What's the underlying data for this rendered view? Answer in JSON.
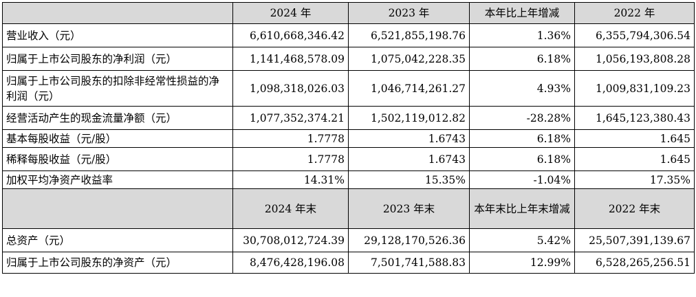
{
  "table": {
    "header1": [
      "",
      "2024 年",
      "2023 年",
      "本年比上年增减",
      "2022 年"
    ],
    "rows1": [
      [
        "营业收入（元）",
        "6,610,668,346.42",
        "6,521,855,198.76",
        "1.36%",
        "6,355,794,306.54"
      ],
      [
        "归属于上市公司股东的净利润（元）",
        "1,141,468,578.09",
        "1,075,042,228.35",
        "6.18%",
        "1,056,193,808.28"
      ],
      [
        "归属于上市公司股东的扣除非经常性损益的净利润（元）",
        "1,098,318,026.03",
        "1,046,714,261.27",
        "4.93%",
        "1,009,831,109.23"
      ],
      [
        "经营活动产生的现金流量净额（元）",
        "1,077,352,374.21",
        "1,502,119,012.82",
        "-28.28%",
        "1,645,123,380.43"
      ],
      [
        "基本每股收益（元/股）",
        "1.7778",
        "1.6743",
        "6.18%",
        "1.645"
      ],
      [
        "稀释每股收益（元/股）",
        "1.7778",
        "1.6743",
        "6.18%",
        "1.645"
      ],
      [
        "加权平均净资产收益率",
        "14.31%",
        "15.35%",
        "-1.04%",
        "17.35%"
      ]
    ],
    "header2": [
      "",
      "2024 年末",
      "2023 年末",
      "本年末比上年末增减",
      "2022 年末"
    ],
    "rows2": [
      [
        "总资产（元）",
        "30,708,012,724.39",
        "29,128,170,526.36",
        "5.42%",
        "25,507,391,139.67"
      ],
      [
        "归属于上市公司股东的净资产（元）",
        "8,476,428,196.08",
        "7,501,741,588.83",
        "12.99%",
        "6,528,265,256.51"
      ]
    ]
  }
}
